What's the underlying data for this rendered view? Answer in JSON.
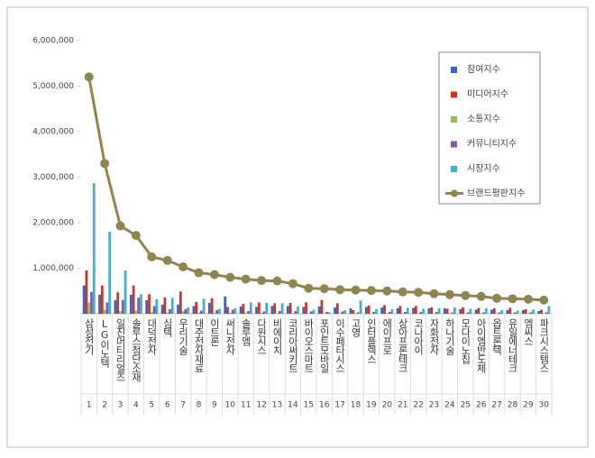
{
  "chart_data": {
    "type": "bar-line",
    "categories": [
      "삼성전기",
      "LG이노텍",
      "일진머티리얼즈",
      "솔루스첨단소재",
      "대덕전자",
      "심텍",
      "우리기술",
      "대주전자재료",
      "이트론",
      "써니전자",
      "솔루엠",
      "다원시스",
      "비에이치",
      "코리아써키트",
      "바이오스마트",
      "포인트모바일",
      "이수페타시스",
      "고영",
      "인터플렉스",
      "에이프로",
      "상아프론테크",
      "코나아이",
      "자화전자",
      "하나기술",
      "모다이노칩",
      "아이엠반도체",
      "옵트론텍",
      "유일에너테크",
      "엠씨스",
      "파크시스템스"
    ],
    "ranks": [
      1,
      2,
      3,
      4,
      5,
      6,
      7,
      8,
      9,
      10,
      11,
      12,
      13,
      14,
      15,
      16,
      17,
      18,
      19,
      20,
      21,
      22,
      23,
      24,
      25,
      26,
      27,
      28,
      29,
      30
    ],
    "ylim": [
      0,
      6000000
    ],
    "yticks": [
      {
        "value": 1000000,
        "label": "1,000,000"
      },
      {
        "value": 2000000,
        "label": "2,000,000"
      },
      {
        "value": 3000000,
        "label": "3,000,000"
      },
      {
        "value": 4000000,
        "label": "4,000,000"
      },
      {
        "value": 5000000,
        "label": "5,000,000"
      },
      {
        "value": 6000000,
        "label": "6,000,000"
      }
    ],
    "series": [
      {
        "name": "참여지수",
        "color": "#3c64b4",
        "kind": "bar",
        "values": [
          620000,
          420000,
          300000,
          420000,
          300000,
          200000,
          200000,
          170000,
          240000,
          380000,
          160000,
          150000,
          170000,
          170000,
          150000,
          160000,
          140000,
          120000,
          150000,
          140000,
          120000,
          130000,
          120000,
          120000,
          100000,
          90000,
          90000,
          80000,
          80000,
          60000
        ]
      },
      {
        "name": "미디어지수",
        "color": "#c0392f",
        "kind": "bar",
        "values": [
          950000,
          620000,
          470000,
          620000,
          430000,
          360000,
          490000,
          260000,
          340000,
          150000,
          220000,
          250000,
          230000,
          240000,
          250000,
          300000,
          230000,
          80000,
          180000,
          190000,
          170000,
          170000,
          140000,
          110000,
          140000,
          130000,
          120000,
          130000,
          100000,
          90000
        ]
      },
      {
        "name": "소통지수",
        "color": "#9bbb59",
        "kind": "bar",
        "values": [
          250000,
          80000,
          60000,
          70000,
          40000,
          30000,
          60000,
          30000,
          20000,
          20000,
          20000,
          20000,
          15000,
          15000,
          10000,
          10000,
          10000,
          10000,
          10000,
          10000,
          10000,
          10000,
          10000,
          10000,
          10000,
          10000,
          10000,
          10000,
          10000,
          10000
        ]
      },
      {
        "name": "커뮤니티지수",
        "color": "#7b5ea7",
        "kind": "bar",
        "values": [
          480000,
          250000,
          300000,
          350000,
          170000,
          100000,
          100000,
          70000,
          80000,
          90000,
          60000,
          50000,
          60000,
          60000,
          50000,
          40000,
          50000,
          30000,
          40000,
          40000,
          40000,
          40000,
          40000,
          30000,
          30000,
          30000,
          30000,
          30000,
          30000,
          30000
        ]
      },
      {
        "name": "시장지수",
        "color": "#4bacc6",
        "kind": "bar",
        "values": [
          2870000,
          1800000,
          950000,
          430000,
          320000,
          350000,
          140000,
          330000,
          110000,
          120000,
          250000,
          240000,
          230000,
          160000,
          90000,
          30000,
          80000,
          290000,
          100000,
          100000,
          130000,
          110000,
          120000,
          140000,
          110000,
          120000,
          80000,
          70000,
          90000,
          170000
        ]
      },
      {
        "name": "브랜드평판지수",
        "color": "#8f8552",
        "kind": "line",
        "values": [
          5200000,
          3300000,
          1930000,
          1720000,
          1250000,
          1170000,
          1030000,
          900000,
          860000,
          800000,
          760000,
          730000,
          720000,
          660000,
          560000,
          550000,
          530000,
          520000,
          510000,
          500000,
          480000,
          470000,
          440000,
          420000,
          400000,
          380000,
          340000,
          330000,
          320000,
          300000
        ]
      }
    ]
  }
}
